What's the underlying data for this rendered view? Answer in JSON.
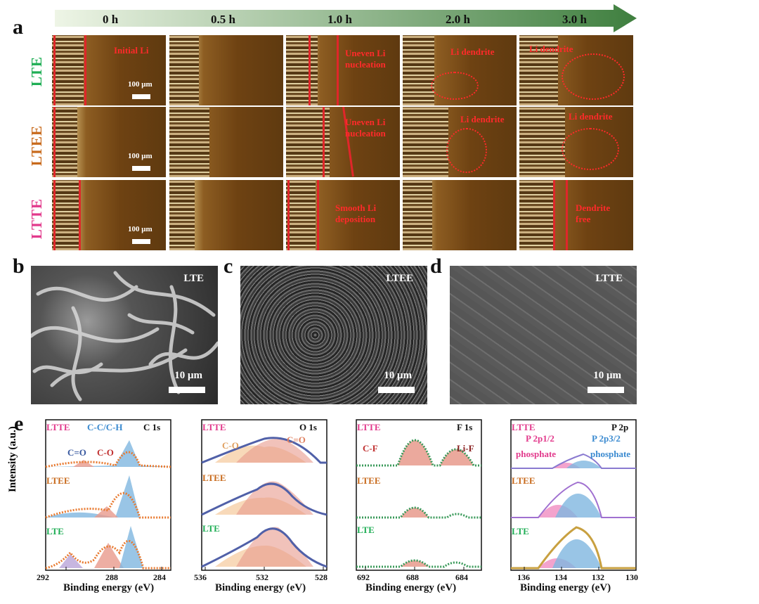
{
  "panel_a": {
    "letter": "a",
    "times": [
      "0 h",
      "0.5 h",
      "1.0 h",
      "2.0 h",
      "3.0 h"
    ],
    "rows": [
      {
        "label": "LTE",
        "color": "#1fae55"
      },
      {
        "label": "LTEE",
        "color": "#c86a1c"
      },
      {
        "label": "LTTE",
        "color": "#e23a8c"
      }
    ],
    "scale_bar": "100 μm",
    "annotations": {
      "lte_0": "Initial Li",
      "lte_1": "Uneven Li\nnucleation",
      "lte_2": "Li dendrite",
      "lte_3": "Li dendrite",
      "ltee_1": "Uneven Li\nnucleation",
      "ltee_2": "Li dendrite",
      "ltee_3": "Li dendrite",
      "ltte_1": "Smooth Li\ndeposition",
      "ltte_3": "Dendrite\nfree"
    }
  },
  "panel_b": {
    "letter": "b",
    "label": "LTE",
    "scale": "10 μm"
  },
  "panel_c": {
    "letter": "c",
    "label": "LTEE",
    "scale": "10 μm"
  },
  "panel_d": {
    "letter": "d",
    "label": "LTTE",
    "scale": "10 μm"
  },
  "panel_e": {
    "letter": "e",
    "ylabel": "Intensity (a.u.)",
    "xlabel": "Binding energy (eV)",
    "row_labels": [
      "LTTE",
      "LTEE",
      "LTE"
    ],
    "row_colors": {
      "LTTE": "#e23a8c",
      "LTEE": "#c86a1c",
      "LTE": "#1fae55"
    },
    "spectra": [
      {
        "title": "C 1s",
        "ticks": [
          "292",
          "288",
          "284"
        ],
        "peaks": [
          "C-C/C-H",
          "C=O",
          "C-O"
        ]
      },
      {
        "title": "O 1s",
        "ticks": [
          "536",
          "532",
          "528"
        ],
        "peaks": [
          "C-O",
          "C=O"
        ]
      },
      {
        "title": "F 1s",
        "ticks": [
          "692",
          "688",
          "684"
        ],
        "peaks": [
          "C-F",
          "Li-F"
        ]
      },
      {
        "title": "P 2p",
        "ticks": [
          "136",
          "134",
          "132",
          "130"
        ],
        "peaks": [
          "P 2p1/2",
          "P 2p3/2",
          "phosphate",
          "phosphate"
        ]
      }
    ]
  },
  "colors": {
    "arrow_light": "#e8f2dd",
    "arrow_dark": "#3a7a3c",
    "fit_red": "#e89a8c",
    "fit_blue": "#7fb7e0",
    "fit_orange": "#f3c08a"
  }
}
